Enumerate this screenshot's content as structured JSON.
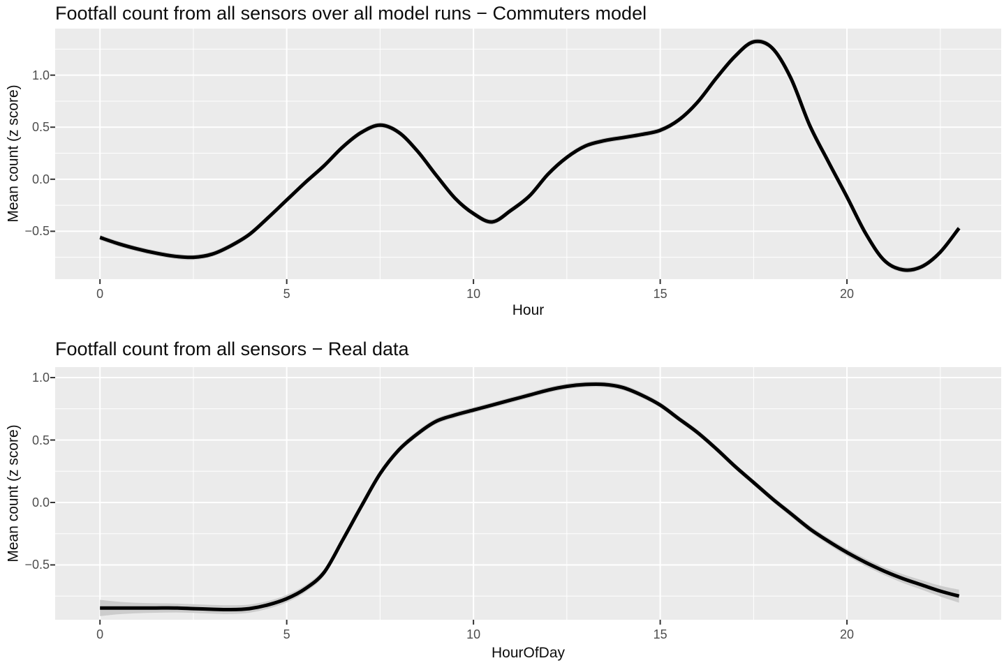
{
  "style": {
    "background": "#ffffff",
    "panel_bg": "#ebebeb",
    "grid_color": "#ffffff",
    "line_color": "#000000",
    "band_color": "#cccccc",
    "tick_mark_color": "#333333",
    "tick_label_color": "#4d4d4d",
    "title_color": "#0d0d0d"
  },
  "chart_data": [
    {
      "type": "line",
      "title": "Footfall count from all sensors over all model runs − Commuters model",
      "xlabel": "Hour",
      "ylabel": "Mean count (z score)",
      "legend": "none",
      "grid": "white major+minor on gray panel",
      "xlim": [
        -1.2,
        24.13
      ],
      "ylim": [
        -0.96,
        1.447
      ],
      "x_ticks": [
        0,
        5,
        10,
        15,
        20
      ],
      "x_tick_labels": [
        "0",
        "5",
        "10",
        "15",
        "20"
      ],
      "x_minor": [
        2.5,
        7.5,
        12.5,
        17.5,
        22.5
      ],
      "y_ticks": [
        1.0,
        0.5,
        0.0,
        -0.5
      ],
      "y_tick_labels": [
        "1.0",
        "0.5",
        "0.0",
        "−0.5"
      ],
      "y_minor": [
        1.25,
        0.75,
        0.25,
        -0.25,
        -0.75
      ],
      "x": [
        0,
        0.5,
        1,
        1.5,
        2,
        2.5,
        3,
        3.5,
        4,
        4.5,
        5,
        5.5,
        6,
        6.5,
        7,
        7.5,
        8,
        8.5,
        9,
        9.5,
        10,
        10.5,
        11,
        11.5,
        12,
        12.5,
        13,
        13.5,
        14,
        14.5,
        15,
        15.5,
        16,
        16.5,
        17,
        17.5,
        18,
        18.5,
        19,
        19.5,
        20,
        20.5,
        21,
        21.5,
        22,
        22.5,
        23
      ],
      "y": [
        -0.56,
        -0.62,
        -0.67,
        -0.71,
        -0.74,
        -0.75,
        -0.72,
        -0.64,
        -0.53,
        -0.37,
        -0.2,
        -0.03,
        0.13,
        0.31,
        0.45,
        0.52,
        0.45,
        0.27,
        0.04,
        -0.18,
        -0.33,
        -0.41,
        -0.3,
        -0.16,
        0.05,
        0.21,
        0.32,
        0.37,
        0.4,
        0.43,
        0.47,
        0.57,
        0.74,
        0.97,
        1.18,
        1.32,
        1.26,
        0.97,
        0.52,
        0.17,
        -0.17,
        -0.52,
        -0.78,
        -0.87,
        -0.84,
        -0.7,
        -0.47
      ],
      "ci": 0.025
    },
    {
      "type": "line",
      "title": "Footfall count from all sensors − Real data",
      "xlabel": "HourOfDay",
      "ylabel": "Mean count (z score)",
      "legend": "none",
      "grid": "white major+minor on gray panel",
      "xlim": [
        -1.2,
        24.13
      ],
      "ylim": [
        -0.939,
        1.084
      ],
      "x_ticks": [
        0,
        5,
        10,
        15,
        20
      ],
      "x_tick_labels": [
        "0",
        "5",
        "10",
        "15",
        "20"
      ],
      "x_minor": [
        2.5,
        7.5,
        12.5,
        17.5,
        22.5
      ],
      "y_ticks": [
        1.0,
        0.5,
        0.0,
        -0.5
      ],
      "y_tick_labels": [
        "1.0",
        "0.5",
        "0.0",
        "−0.5"
      ],
      "y_minor": [
        0.75,
        0.25,
        -0.25,
        -0.75
      ],
      "x": [
        0,
        0.5,
        1,
        1.5,
        2,
        2.5,
        3,
        3.5,
        4,
        4.5,
        5,
        5.5,
        6,
        6.5,
        7,
        7.5,
        8,
        8.5,
        9,
        9.5,
        10,
        10.5,
        11,
        11.5,
        12,
        12.5,
        13,
        13.5,
        14,
        14.5,
        15,
        15.5,
        16,
        16.5,
        17,
        17.5,
        18,
        18.5,
        19,
        19.5,
        20,
        20.5,
        21,
        21.5,
        22,
        22.5,
        23
      ],
      "y": [
        -0.845,
        -0.845,
        -0.845,
        -0.845,
        -0.845,
        -0.85,
        -0.855,
        -0.858,
        -0.85,
        -0.82,
        -0.77,
        -0.69,
        -0.56,
        -0.3,
        -0.03,
        0.23,
        0.42,
        0.55,
        0.65,
        0.7,
        0.74,
        0.78,
        0.82,
        0.86,
        0.9,
        0.93,
        0.945,
        0.945,
        0.92,
        0.86,
        0.78,
        0.67,
        0.56,
        0.43,
        0.29,
        0.16,
        0.03,
        -0.09,
        -0.21,
        -0.31,
        -0.4,
        -0.48,
        -0.55,
        -0.61,
        -0.66,
        -0.71,
        -0.75
      ],
      "ci": [
        0.065,
        0.05,
        0.042,
        0.038,
        0.036,
        0.035,
        0.035,
        0.035,
        0.033,
        0.031,
        0.03,
        0.028,
        0.027,
        0.026,
        0.025,
        0.025,
        0.024,
        0.024,
        0.023,
        0.023,
        0.022,
        0.022,
        0.022,
        0.022,
        0.022,
        0.022,
        0.022,
        0.022,
        0.022,
        0.022,
        0.022,
        0.022,
        0.022,
        0.022,
        0.022,
        0.022,
        0.023,
        0.024,
        0.025,
        0.026,
        0.028,
        0.03,
        0.032,
        0.035,
        0.038,
        0.043,
        0.052
      ]
    }
  ]
}
